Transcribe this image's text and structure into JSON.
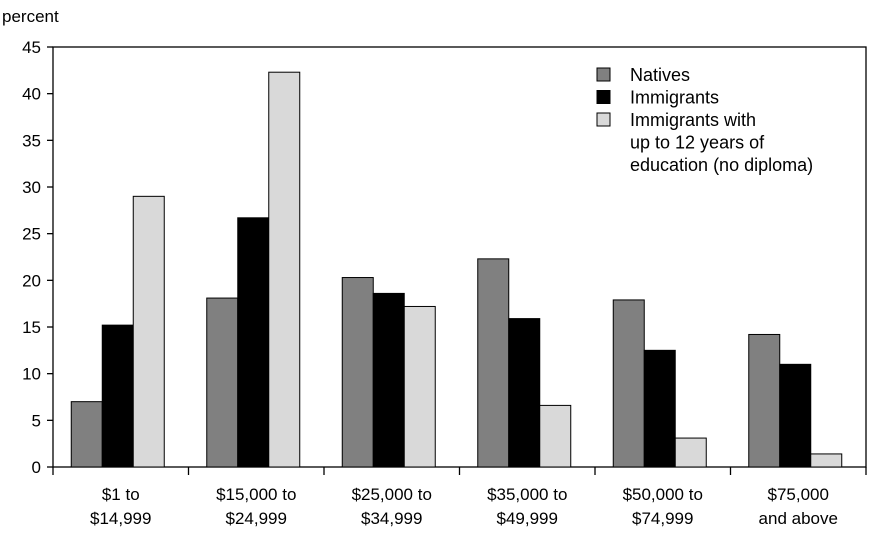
{
  "chart_data": {
    "type": "bar",
    "ylabel": "percent",
    "ylim": [
      0,
      45
    ],
    "yticks": [
      0,
      5,
      10,
      15,
      20,
      25,
      30,
      35,
      40,
      45
    ],
    "categories": [
      [
        "$1 to",
        "$14,999"
      ],
      [
        "$15,000 to",
        "$24,999"
      ],
      [
        "$25,000 to",
        "$34,999"
      ],
      [
        "$35,000 to",
        "$49,999"
      ],
      [
        "$50,000 to",
        "$74,999"
      ],
      [
        "$75,000",
        "and above"
      ]
    ],
    "series": [
      {
        "name": "Natives",
        "color": "#808080",
        "values": [
          7.0,
          18.1,
          20.3,
          22.3,
          17.9,
          14.2
        ]
      },
      {
        "name": "Immigrants",
        "color": "#000000",
        "values": [
          15.2,
          26.7,
          18.6,
          15.9,
          12.5,
          11.0
        ]
      },
      {
        "name": [
          "Immigrants with",
          "up to 12 years of",
          "education (no diploma)"
        ],
        "color": "#d9d9d9",
        "values": [
          29.0,
          42.3,
          17.2,
          6.6,
          3.1,
          1.4
        ]
      }
    ],
    "legend_position": "top-right",
    "grid": false
  }
}
